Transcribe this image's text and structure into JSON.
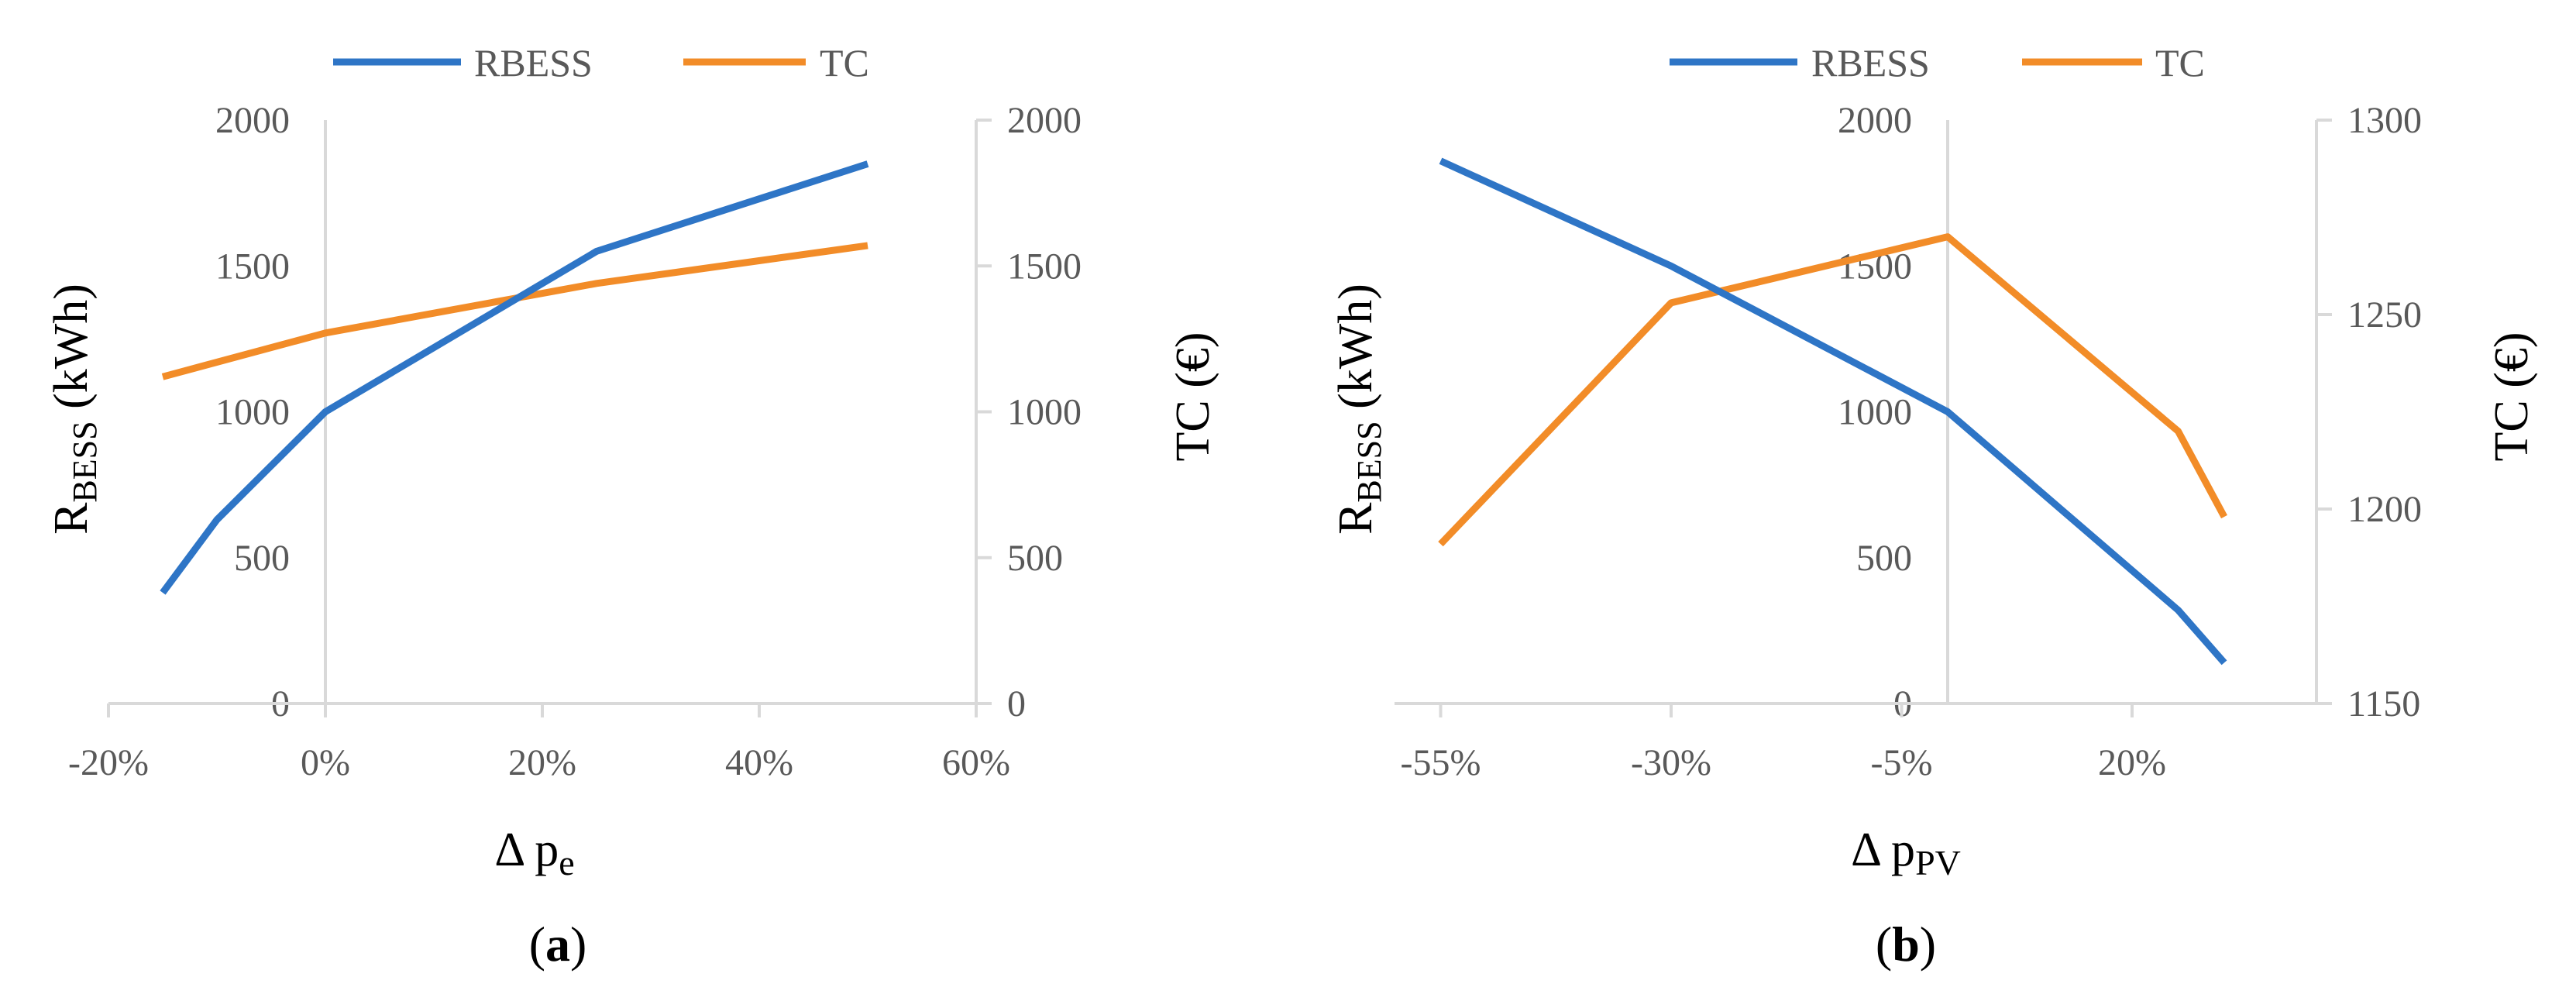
{
  "chart_data": [
    {
      "type": "line",
      "panel_label": "a",
      "legend": [
        "RBESS",
        "TC"
      ],
      "legend_placement": "top",
      "xlabel": {
        "prefix": "Δ p",
        "sub": "e"
      },
      "ylabel_left": {
        "main": "R",
        "sub": "BESS",
        "unit": " (kWh)"
      },
      "ylabel_right": "TC (€)",
      "x_ticks": [
        "-20%",
        "0%",
        "20%",
        "40%",
        "60%"
      ],
      "x_tick_values": [
        -20,
        0,
        20,
        40,
        60
      ],
      "xlim": [
        -20,
        60
      ],
      "y_left_ticks": [
        "0",
        "500",
        "1000",
        "1500",
        "2000"
      ],
      "y_left_tick_values": [
        0,
        500,
        1000,
        1500,
        2000
      ],
      "ylim_left": [
        0,
        2000
      ],
      "y_right_ticks": [
        "0",
        "500",
        "1000",
        "1500",
        "2000"
      ],
      "y_right_tick_values": [
        0,
        500,
        1000,
        1500,
        2000
      ],
      "ylim_right": [
        0,
        2000
      ],
      "grid": false,
      "series": [
        {
          "name": "RBESS",
          "axis": "left",
          "color": "#2E75C6",
          "x": [
            -15,
            -10,
            0,
            25,
            50
          ],
          "y": [
            380,
            630,
            1000,
            1550,
            1850
          ]
        },
        {
          "name": "TC",
          "axis": "right",
          "color": "#F28C28",
          "x": [
            -15,
            0,
            25,
            50
          ],
          "y": [
            1120,
            1270,
            1440,
            1570
          ]
        }
      ]
    },
    {
      "type": "line",
      "panel_label": "b",
      "legend": [
        "RBESS",
        "TC"
      ],
      "legend_placement": "top",
      "xlabel": {
        "prefix": "Δ p",
        "sub": "PV"
      },
      "ylabel_left": {
        "main": "R",
        "sub": "BESS",
        "unit": " (kWh)"
      },
      "ylabel_right": "TC (€)",
      "x_ticks": [
        "-55%",
        "-30%",
        "-5%",
        "20%"
      ],
      "x_tick_values": [
        -55,
        -30,
        -5,
        20
      ],
      "xlim": [
        -60,
        40
      ],
      "y_left_ticks": [
        "0",
        "500",
        "1000",
        "1500",
        "2000"
      ],
      "y_left_tick_values": [
        0,
        500,
        1000,
        1500,
        2000
      ],
      "ylim_left": [
        0,
        2000
      ],
      "y_right_ticks": [
        "1150",
        "1200",
        "1250",
        "1300"
      ],
      "y_right_tick_values": [
        1150,
        1200,
        1250,
        1300
      ],
      "ylim_right": [
        1150,
        1300
      ],
      "grid": false,
      "series": [
        {
          "name": "RBESS",
          "axis": "left",
          "color": "#2E75C6",
          "x": [
            -55,
            -30,
            0,
            25,
            30
          ],
          "y": [
            1860,
            1500,
            1000,
            320,
            140
          ]
        },
        {
          "name": "TC",
          "axis": "right",
          "color": "#F28C28",
          "x": [
            -55,
            -30,
            0,
            25,
            30
          ],
          "y": [
            1191,
            1253,
            1270,
            1220,
            1198
          ]
        }
      ]
    }
  ]
}
